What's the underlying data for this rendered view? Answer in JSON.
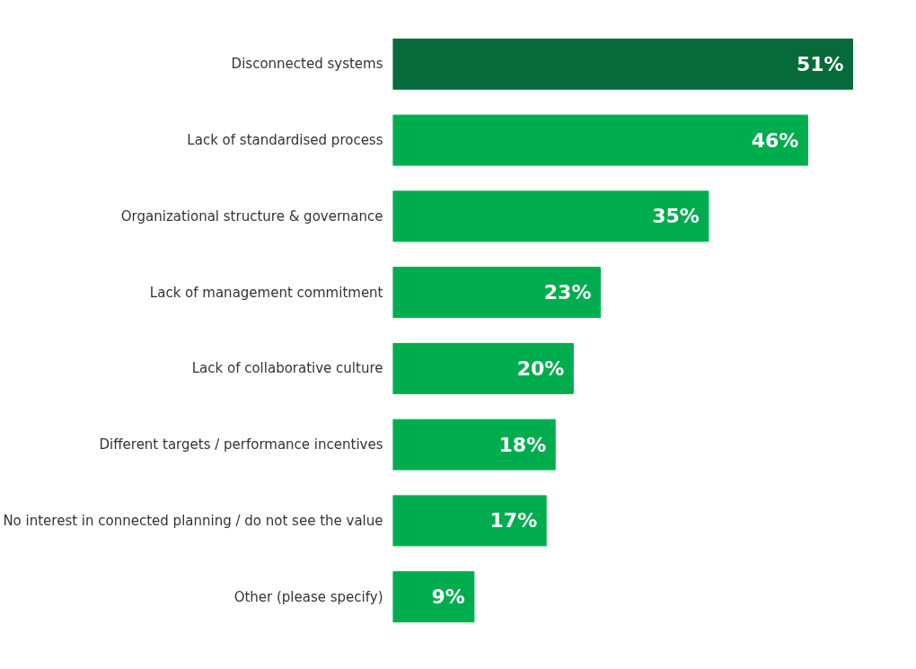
{
  "chart_data": {
    "type": "bar",
    "orientation": "horizontal",
    "categories": [
      "Disconnected systems",
      "Lack of standardised process",
      "Organizational structure & governance",
      "Lack of management commitment",
      "Lack of collaborative culture",
      "Different targets / performance incentives",
      "No interest in connected planning / do not see the value",
      "Other (please specify)"
    ],
    "values": [
      51,
      46,
      35,
      23,
      20,
      18,
      17,
      9
    ],
    "value_labels": [
      "51%",
      "46%",
      "35%",
      "23%",
      "20%",
      "18%",
      "17%",
      "9%"
    ],
    "colors": [
      "#076a3a",
      "#00ad4e",
      "#00ad4e",
      "#00ad4e",
      "#00ad4e",
      "#00ad4e",
      "#00ad4e",
      "#00ad4e"
    ],
    "grid": false
  }
}
